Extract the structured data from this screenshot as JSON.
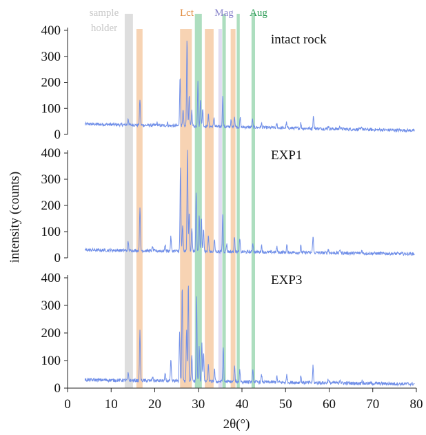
{
  "chart_data": {
    "type": "line",
    "xlabel": "2θ(°)",
    "ylabel": "intensity (counts)",
    "xlim": [
      0,
      80
    ],
    "ylim": [
      0,
      400
    ],
    "x_ticks": [
      "0",
      "10",
      "20",
      "30",
      "40",
      "50",
      "60",
      "70",
      "80"
    ],
    "y_ticks": [
      "0",
      "100",
      "200",
      "300",
      "400"
    ],
    "grid": false,
    "line_color": "#6f8ee8",
    "band_labels": [
      {
        "text": "sample",
        "color": "#c8c8c8"
      },
      {
        "text": "holder",
        "color": "#c8c8c8"
      },
      {
        "text": "Lct",
        "color": "#e08a3c"
      },
      {
        "text": "Mag",
        "color": "#8a86cc"
      },
      {
        "text": "Aug",
        "color": "#2e9e58"
      }
    ],
    "bands": [
      {
        "group": "sample holder",
        "x0": 13.1,
        "x1": 15.0,
        "color": "#d8d8d8"
      },
      {
        "group": "Lct",
        "x0": 15.8,
        "x1": 17.2,
        "color": "#f6cba6"
      },
      {
        "group": "Lct",
        "x0": 25.8,
        "x1": 28.5,
        "color": "#f6cba6"
      },
      {
        "group": "Lct",
        "x0": 31.5,
        "x1": 33.5,
        "color": "#f6cba6"
      },
      {
        "group": "Lct",
        "x0": 37.4,
        "x1": 38.5,
        "color": "#f6cba6"
      },
      {
        "group": "Mag",
        "x0": 34.6,
        "x1": 35.4,
        "color": "#dcd6f0"
      },
      {
        "group": "Aug",
        "x0": 29.2,
        "x1": 30.8,
        "color": "#9fd8b4"
      },
      {
        "group": "Aug",
        "x0": 35.5,
        "x1": 36.3,
        "color": "#9fd8b4"
      },
      {
        "group": "Aug",
        "x0": 38.8,
        "x1": 39.5,
        "color": "#9fd8b4"
      },
      {
        "group": "Aug",
        "x0": 42.2,
        "x1": 43.0,
        "color": "#9fd8b4"
      }
    ],
    "panels": [
      {
        "name": "intact rock",
        "baseline_start": 40,
        "baseline_end": 15,
        "peaks": [
          [
            13.9,
            25
          ],
          [
            16.6,
            100
          ],
          [
            20.5,
            10
          ],
          [
            22.9,
            12
          ],
          [
            25.8,
            190
          ],
          [
            26.5,
            60
          ],
          [
            27.4,
            340
          ],
          [
            27.9,
            120
          ],
          [
            28.5,
            60
          ],
          [
            29.9,
            170
          ],
          [
            30.5,
            110
          ],
          [
            31.0,
            70
          ],
          [
            32.3,
            45
          ],
          [
            33.6,
            35
          ],
          [
            35.6,
            120
          ],
          [
            37.5,
            25
          ],
          [
            38.3,
            40
          ],
          [
            39.6,
            35
          ],
          [
            42.4,
            30
          ],
          [
            44.5,
            15
          ],
          [
            48.0,
            15
          ],
          [
            50.2,
            20
          ],
          [
            53.5,
            20
          ],
          [
            56.4,
            50
          ],
          [
            59.8,
            12
          ],
          [
            62.5,
            12
          ],
          [
            67.5,
            10
          ]
        ]
      },
      {
        "name": "EXP1",
        "baseline_start": 30,
        "baseline_end": 15,
        "peaks": [
          [
            13.9,
            35
          ],
          [
            16.6,
            170
          ],
          [
            19.5,
            15
          ],
          [
            22.4,
            25
          ],
          [
            23.7,
            55
          ],
          [
            25.9,
            320
          ],
          [
            26.4,
            100
          ],
          [
            27.5,
            390
          ],
          [
            27.9,
            150
          ],
          [
            28.5,
            90
          ],
          [
            29.5,
            230
          ],
          [
            30.2,
            140
          ],
          [
            30.7,
            130
          ],
          [
            31.2,
            90
          ],
          [
            32.3,
            60
          ],
          [
            33.7,
            45
          ],
          [
            35.6,
            150
          ],
          [
            36.5,
            30
          ],
          [
            38.3,
            60
          ],
          [
            39.5,
            50
          ],
          [
            42.5,
            35
          ],
          [
            44.5,
            25
          ],
          [
            48.0,
            20
          ],
          [
            50.3,
            30
          ],
          [
            53.5,
            25
          ],
          [
            56.3,
            65
          ],
          [
            59.8,
            15
          ],
          [
            62.5,
            15
          ],
          [
            67.5,
            12
          ]
        ]
      },
      {
        "name": "EXP3",
        "baseline_start": 30,
        "baseline_end": 15,
        "peaks": [
          [
            13.9,
            25
          ],
          [
            16.6,
            180
          ],
          [
            19.5,
            15
          ],
          [
            22.4,
            25
          ],
          [
            23.7,
            75
          ],
          [
            25.7,
            180
          ],
          [
            26.3,
            350
          ],
          [
            27.3,
            190
          ],
          [
            27.7,
            360
          ],
          [
            28.5,
            90
          ],
          [
            29.6,
            310
          ],
          [
            30.2,
            130
          ],
          [
            30.8,
            140
          ],
          [
            31.2,
            100
          ],
          [
            32.3,
            60
          ],
          [
            33.7,
            45
          ],
          [
            35.7,
            130
          ],
          [
            38.3,
            55
          ],
          [
            39.5,
            45
          ],
          [
            42.5,
            40
          ],
          [
            44.5,
            25
          ],
          [
            48.0,
            20
          ],
          [
            50.3,
            30
          ],
          [
            53.5,
            25
          ],
          [
            56.3,
            60
          ],
          [
            59.8,
            15
          ],
          [
            62.5,
            15
          ],
          [
            67.5,
            12
          ]
        ]
      }
    ]
  }
}
